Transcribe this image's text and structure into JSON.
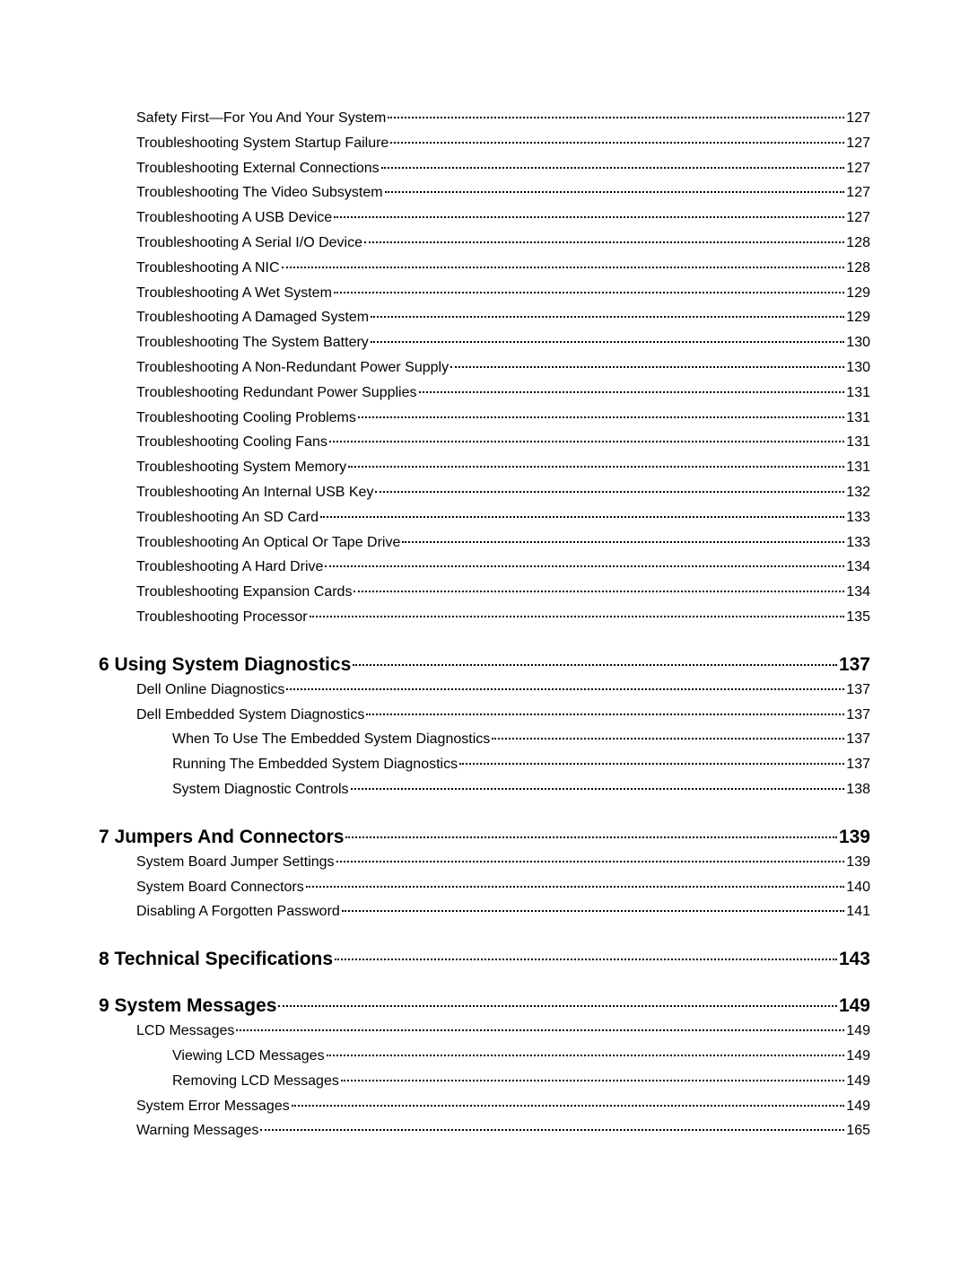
{
  "toc": [
    {
      "level": 1,
      "label": "Safety First—For You And Your System",
      "page": "127"
    },
    {
      "level": 1,
      "label": "Troubleshooting System Startup Failure",
      "page": "127"
    },
    {
      "level": 1,
      "label": "Troubleshooting External Connections",
      "page": "127"
    },
    {
      "level": 1,
      "label": "Troubleshooting The Video Subsystem",
      "page": "127"
    },
    {
      "level": 1,
      "label": "Troubleshooting A USB Device",
      "page": "127"
    },
    {
      "level": 1,
      "label": "Troubleshooting A Serial I/O Device",
      "page": "128"
    },
    {
      "level": 1,
      "label": "Troubleshooting A NIC",
      "page": "128"
    },
    {
      "level": 1,
      "label": "Troubleshooting A Wet System",
      "page": "129"
    },
    {
      "level": 1,
      "label": "Troubleshooting A Damaged System",
      "page": "129"
    },
    {
      "level": 1,
      "label": "Troubleshooting The System Battery",
      "page": "130"
    },
    {
      "level": 1,
      "label": "Troubleshooting A Non-Redundant Power Supply",
      "page": "130"
    },
    {
      "level": 1,
      "label": "Troubleshooting Redundant Power Supplies",
      "page": "131"
    },
    {
      "level": 1,
      "label": "Troubleshooting Cooling Problems",
      "page": "131"
    },
    {
      "level": 1,
      "label": "Troubleshooting Cooling Fans",
      "page": "131"
    },
    {
      "level": 1,
      "label": "Troubleshooting System Memory",
      "page": "131"
    },
    {
      "level": 1,
      "label": "Troubleshooting An Internal USB Key",
      "page": "132"
    },
    {
      "level": 1,
      "label": "Troubleshooting An SD Card",
      "page": "133"
    },
    {
      "level": 1,
      "label": "Troubleshooting An Optical Or Tape Drive",
      "page": "133"
    },
    {
      "level": 1,
      "label": "Troubleshooting A Hard Drive",
      "page": "134"
    },
    {
      "level": 1,
      "label": "Troubleshooting Expansion Cards",
      "page": "134"
    },
    {
      "level": 1,
      "label": "Troubleshooting Processor",
      "page": "135"
    },
    {
      "level": 0,
      "label": "6 Using System Diagnostics",
      "page": "137"
    },
    {
      "level": 1,
      "label": "Dell Online Diagnostics",
      "page": "137"
    },
    {
      "level": 1,
      "label": "Dell Embedded System Diagnostics",
      "page": "137"
    },
    {
      "level": 2,
      "label": "When To Use The Embedded System Diagnostics",
      "page": "137"
    },
    {
      "level": 2,
      "label": "Running The Embedded System Diagnostics",
      "page": "137"
    },
    {
      "level": 2,
      "label": "System Diagnostic Controls",
      "page": "138"
    },
    {
      "level": 0,
      "label": "7 Jumpers And Connectors",
      "page": "139"
    },
    {
      "level": 1,
      "label": "System Board Jumper Settings",
      "page": "139"
    },
    {
      "level": 1,
      "label": "System Board Connectors",
      "page": "140"
    },
    {
      "level": 1,
      "label": "Disabling A Forgotten Password",
      "page": "141"
    },
    {
      "level": 0,
      "label": "8 Technical Specifications",
      "page": "143"
    },
    {
      "level": 0,
      "label": "9 System Messages",
      "page": "149"
    },
    {
      "level": 1,
      "label": "LCD Messages",
      "page": "149"
    },
    {
      "level": 2,
      "label": "Viewing LCD Messages",
      "page": "149"
    },
    {
      "level": 2,
      "label": "Removing LCD Messages",
      "page": "149"
    },
    {
      "level": 1,
      "label": "System Error Messages",
      "page": "149"
    },
    {
      "level": 1,
      "label": "Warning Messages",
      "page": "165"
    }
  ]
}
